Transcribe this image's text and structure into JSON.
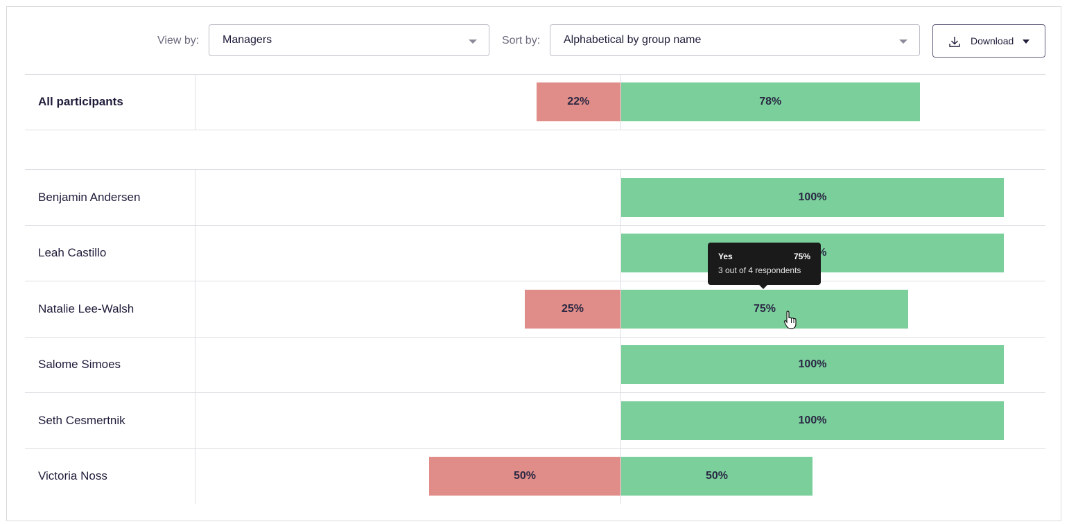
{
  "toolbar": {
    "view_by_label": "View by:",
    "view_by_value": "Managers",
    "sort_by_label": "Sort by:",
    "sort_by_value": "Alphabetical by group name",
    "download_label": "Download"
  },
  "chart_data": {
    "type": "bar",
    "categories": [
      "All participants",
      "Benjamin Andersen",
      "Leah Castillo",
      "Natalie Lee-Walsh",
      "Salome Simoes",
      "Seth Cesmertnik",
      "Victoria Noss"
    ],
    "series": [
      {
        "values": [
          22,
          0,
          0,
          25,
          0,
          0,
          50
        ],
        "labels": [
          "22%",
          "",
          "",
          "25%",
          "",
          "",
          "50%"
        ]
      },
      {
        "values": [
          78,
          100,
          100,
          75,
          100,
          100,
          50
        ],
        "labels": [
          "78%",
          "100%",
          "100%",
          "75%",
          "100%",
          "100%",
          "50%"
        ]
      }
    ],
    "colors": {
      "negative": "#e08c88",
      "positive": "#7acf9b"
    }
  },
  "tooltip": {
    "label": "Yes",
    "percent": "75%",
    "detail": "3 out of 4 respondents"
  }
}
